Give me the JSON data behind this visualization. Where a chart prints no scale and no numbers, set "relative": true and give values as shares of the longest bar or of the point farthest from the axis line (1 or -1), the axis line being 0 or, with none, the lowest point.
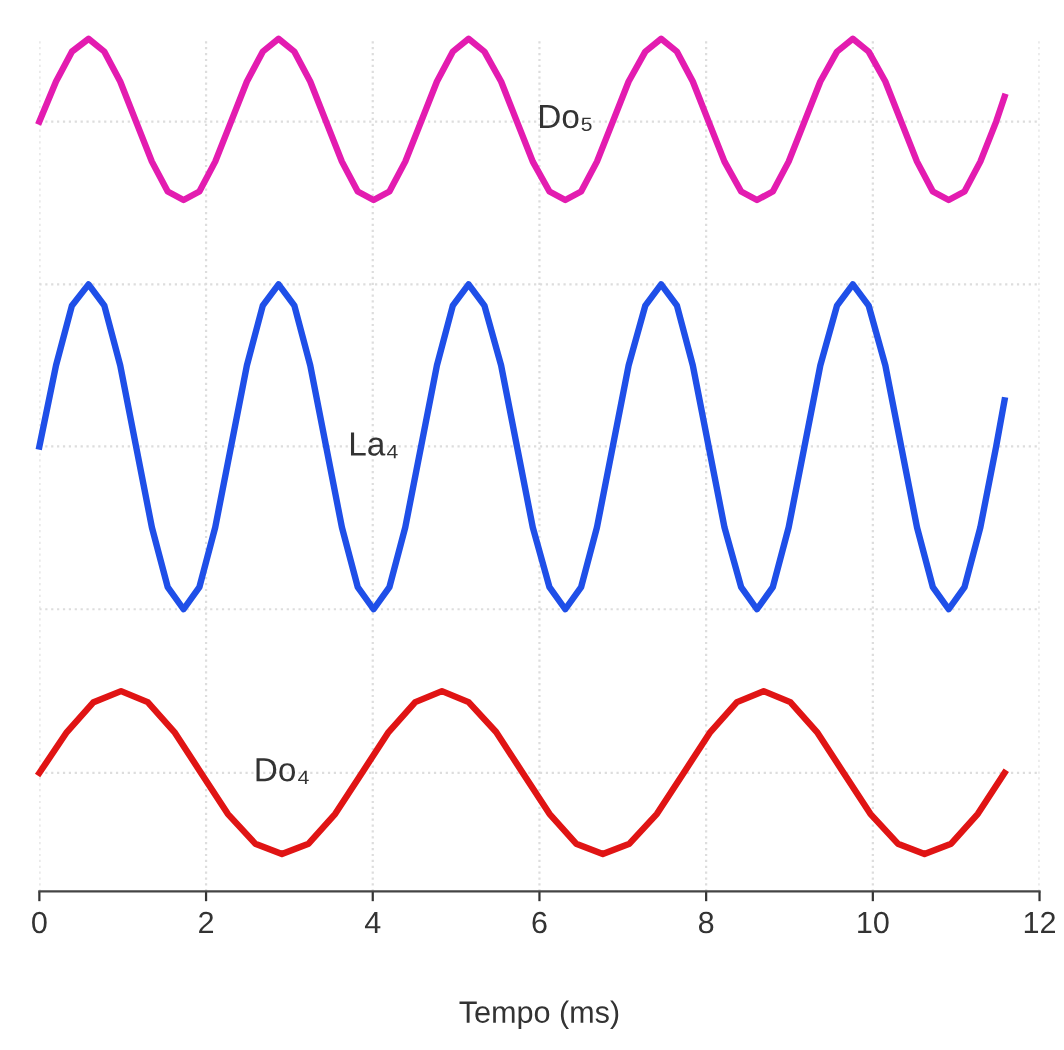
{
  "chart_data": {
    "type": "line",
    "relative": true,
    "xlabel": "Tempo (ms)",
    "xlim": [
      0,
      12
    ],
    "xticks": [
      0,
      2,
      4,
      6,
      8,
      10,
      12
    ],
    "grid": "x",
    "legend": false,
    "line_style": "solid",
    "marker": "none",
    "tick_labels": "x",
    "series": [
      {
        "name": "Do₅",
        "color": "#e31cb0",
        "x": [
          0,
          0.2,
          0.39,
          0.59,
          0.78,
          0.97,
          1.16,
          1.35,
          1.54,
          1.73,
          1.92,
          2.11,
          2.3,
          2.49,
          2.68,
          2.87,
          3.06,
          3.25,
          3.44,
          3.63,
          3.82,
          4.01,
          4.2,
          4.39,
          4.58,
          4.77,
          4.96,
          5.15,
          5.34,
          5.54,
          5.73,
          5.92,
          6.12,
          6.31,
          6.5,
          6.69,
          6.88,
          7.07,
          7.27,
          7.46,
          7.65,
          7.84,
          8.03,
          8.22,
          8.42,
          8.61,
          8.8,
          8.99,
          9.18,
          9.37,
          9.57,
          9.76,
          9.95,
          10.15,
          10.34,
          10.53,
          10.72,
          10.91,
          11.1,
          11.29,
          11.48,
          11.58
        ],
        "values": [
          0.903,
          0.95,
          0.985,
          1.0,
          0.985,
          0.95,
          0.903,
          0.856,
          0.821,
          0.811,
          0.821,
          0.856,
          0.903,
          0.95,
          0.985,
          1.0,
          0.985,
          0.95,
          0.903,
          0.856,
          0.821,
          0.811,
          0.821,
          0.856,
          0.903,
          0.95,
          0.985,
          1.0,
          0.985,
          0.95,
          0.903,
          0.856,
          0.821,
          0.811,
          0.821,
          0.856,
          0.903,
          0.95,
          0.985,
          1.0,
          0.985,
          0.95,
          0.903,
          0.856,
          0.821,
          0.811,
          0.821,
          0.856,
          0.903,
          0.95,
          0.985,
          1.0,
          0.985,
          0.95,
          0.903,
          0.856,
          0.821,
          0.811,
          0.821,
          0.856,
          0.903,
          0.932
        ]
      },
      {
        "name": "La₄",
        "color": "#1f4fe8",
        "x": [
          0,
          0.2,
          0.39,
          0.59,
          0.78,
          0.97,
          1.16,
          1.35,
          1.54,
          1.73,
          1.92,
          2.11,
          2.3,
          2.49,
          2.68,
          2.87,
          3.06,
          3.25,
          3.44,
          3.63,
          3.82,
          4.01,
          4.2,
          4.39,
          4.58,
          4.77,
          4.96,
          5.15,
          5.34,
          5.54,
          5.73,
          5.92,
          6.12,
          6.31,
          6.5,
          6.69,
          6.88,
          7.07,
          7.27,
          7.46,
          7.65,
          7.84,
          8.03,
          8.22,
          8.42,
          8.61,
          8.8,
          8.99,
          9.18,
          9.37,
          9.57,
          9.76,
          9.95,
          10.15,
          10.34,
          10.53,
          10.72,
          10.91,
          11.1,
          11.29,
          11.48,
          11.58
        ],
        "values": [
          0.522,
          0.617,
          0.687,
          0.712,
          0.687,
          0.617,
          0.522,
          0.427,
          0.357,
          0.331,
          0.357,
          0.427,
          0.522,
          0.617,
          0.687,
          0.712,
          0.687,
          0.617,
          0.522,
          0.427,
          0.357,
          0.331,
          0.357,
          0.427,
          0.522,
          0.617,
          0.687,
          0.712,
          0.687,
          0.617,
          0.522,
          0.427,
          0.357,
          0.331,
          0.357,
          0.427,
          0.522,
          0.617,
          0.687,
          0.712,
          0.687,
          0.617,
          0.522,
          0.427,
          0.357,
          0.331,
          0.357,
          0.427,
          0.522,
          0.617,
          0.687,
          0.712,
          0.687,
          0.617,
          0.522,
          0.427,
          0.357,
          0.331,
          0.357,
          0.427,
          0.522,
          0.576
        ]
      },
      {
        "name": "Do₄",
        "color": "#e01414",
        "x": [
          0,
          0.33,
          0.65,
          0.98,
          1.3,
          1.62,
          1.94,
          2.26,
          2.59,
          2.91,
          3.23,
          3.55,
          3.87,
          4.19,
          4.51,
          4.83,
          5.15,
          5.48,
          5.8,
          6.12,
          6.44,
          6.76,
          7.08,
          7.41,
          7.73,
          8.05,
          8.37,
          8.69,
          9.01,
          9.33,
          9.65,
          9.97,
          10.3,
          10.62,
          10.94,
          11.26,
          11.58
        ],
        "values": [
          0.139,
          0.187,
          0.222,
          0.235,
          0.222,
          0.187,
          0.139,
          0.091,
          0.056,
          0.044,
          0.056,
          0.091,
          0.139,
          0.187,
          0.222,
          0.235,
          0.222,
          0.187,
          0.139,
          0.091,
          0.056,
          0.044,
          0.056,
          0.091,
          0.139,
          0.187,
          0.222,
          0.235,
          0.222,
          0.187,
          0.139,
          0.091,
          0.056,
          0.044,
          0.056,
          0.091,
          0.139
        ]
      }
    ],
    "ref_lines": [
      {
        "axis": "y",
        "value": 0.903,
        "color": "#dddddd",
        "line_style": "dotted"
      },
      {
        "axis": "y",
        "value": 0.712,
        "color": "#dddddd",
        "line_style": "dotted"
      },
      {
        "axis": "y",
        "value": 0.522,
        "color": "#dddddd",
        "line_style": "dotted"
      },
      {
        "axis": "y",
        "value": 0.331,
        "color": "#dddddd",
        "line_style": "dotted"
      },
      {
        "axis": "y",
        "value": 0.139,
        "color": "#dddddd",
        "line_style": "dotted"
      }
    ]
  }
}
